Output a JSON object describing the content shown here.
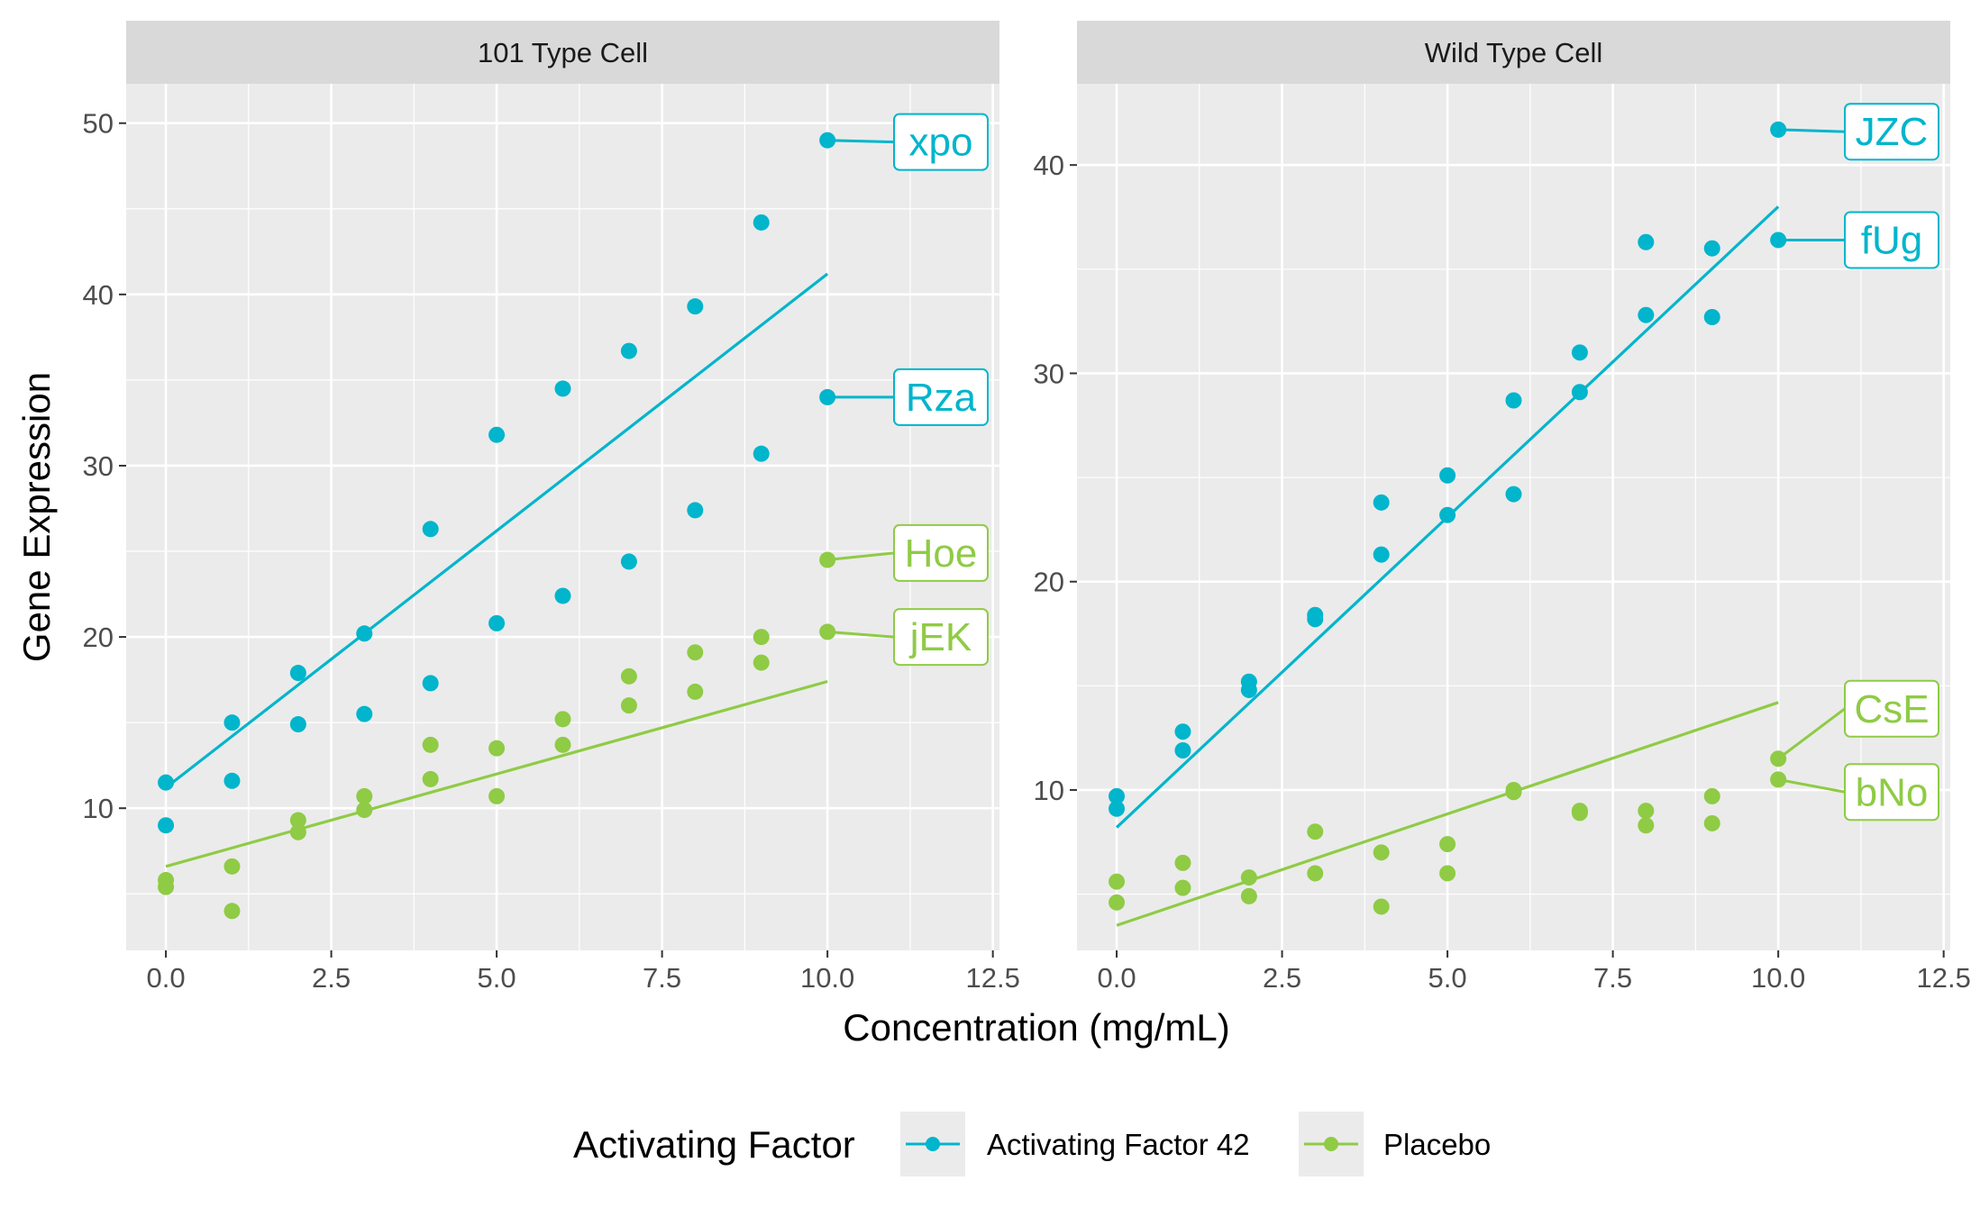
{
  "chart_data": {
    "type": "scatter",
    "xlabel": "Concentration (mg/mL)",
    "ylabel": "Gene Expression",
    "legend": {
      "title": "Activating Factor",
      "placement": "bottom",
      "entries": [
        "Activating Factor 42",
        "Placebo"
      ]
    },
    "colors": {
      "Activating Factor 42": "#00B5CC",
      "Placebo": "#8FCB45"
    },
    "xticks": [
      "0.0",
      "2.5",
      "5.0",
      "7.5",
      "10.0",
      "12.5"
    ],
    "xlim": [
      -0.6,
      12.6
    ],
    "grid": true,
    "panels": [
      {
        "strip": "101 Type Cell",
        "ylim": [
          1.7,
          52.3
        ],
        "yticks": [
          10,
          20,
          30,
          40,
          50
        ],
        "series": [
          {
            "name": "Activating Factor 42",
            "points": [
              [
                0,
                11.5
              ],
              [
                0,
                9.0
              ],
              [
                1,
                15.0
              ],
              [
                1,
                11.6
              ],
              [
                2,
                17.9
              ],
              [
                2,
                14.9
              ],
              [
                3,
                20.2
              ],
              [
                3,
                15.5
              ],
              [
                4,
                26.3
              ],
              [
                4,
                17.3
              ],
              [
                5,
                31.8
              ],
              [
                5,
                20.8
              ],
              [
                6,
                34.5
              ],
              [
                6,
                22.4
              ],
              [
                7,
                36.7
              ],
              [
                7,
                24.4
              ],
              [
                8,
                39.3
              ],
              [
                8,
                27.4
              ],
              [
                9,
                44.2
              ],
              [
                9,
                30.7
              ],
              [
                10,
                49.0
              ],
              [
                10,
                34.0
              ]
            ],
            "fit": [
              [
                0,
                11.2
              ],
              [
                10,
                41.2
              ]
            ]
          },
          {
            "name": "Placebo",
            "points": [
              [
                0,
                5.8
              ],
              [
                0,
                5.4
              ],
              [
                1,
                6.6
              ],
              [
                1,
                4.0
              ],
              [
                2,
                9.3
              ],
              [
                2,
                8.6
              ],
              [
                3,
                10.7
              ],
              [
                3,
                9.9
              ],
              [
                4,
                13.7
              ],
              [
                4,
                11.7
              ],
              [
                5,
                13.5
              ],
              [
                5,
                10.7
              ],
              [
                6,
                15.2
              ],
              [
                6,
                13.7
              ],
              [
                7,
                17.7
              ],
              [
                7,
                16.0
              ],
              [
                8,
                19.1
              ],
              [
                8,
                16.8
              ],
              [
                9,
                20.0
              ],
              [
                9,
                18.5
              ],
              [
                10,
                24.5
              ],
              [
                10,
                20.3
              ]
            ],
            "fit": [
              [
                0,
                6.6
              ],
              [
                10,
                17.4
              ]
            ]
          }
        ],
        "labels": [
          {
            "text": "xpo",
            "series": "Activating Factor 42",
            "x": 10,
            "y": 49.0,
            "label_y": 48.9
          },
          {
            "text": "Rza",
            "series": "Activating Factor 42",
            "x": 10,
            "y": 34.0,
            "label_y": 34.0
          },
          {
            "text": "Hoe",
            "series": "Placebo",
            "x": 10,
            "y": 24.5,
            "label_y": 24.9
          },
          {
            "text": "jEK",
            "series": "Placebo",
            "x": 10,
            "y": 20.3,
            "label_y": 20.0
          }
        ]
      },
      {
        "strip": "Wild Type Cell",
        "ylim": [
          2.3,
          43.9
        ],
        "yticks": [
          10,
          20,
          30,
          40
        ],
        "series": [
          {
            "name": "Activating Factor 42",
            "points": [
              [
                0,
                9.7
              ],
              [
                0,
                9.1
              ],
              [
                1,
                12.8
              ],
              [
                1,
                11.9
              ],
              [
                2,
                15.2
              ],
              [
                2,
                14.8
              ],
              [
                3,
                18.4
              ],
              [
                3,
                18.2
              ],
              [
                4,
                23.8
              ],
              [
                4,
                21.3
              ],
              [
                5,
                25.1
              ],
              [
                5,
                23.2
              ],
              [
                6,
                28.7
              ],
              [
                6,
                24.2
              ],
              [
                7,
                31.0
              ],
              [
                7,
                29.1
              ],
              [
                8,
                36.3
              ],
              [
                8,
                32.8
              ],
              [
                9,
                36.0
              ],
              [
                9,
                32.7
              ],
              [
                10,
                41.7
              ],
              [
                10,
                36.4
              ]
            ],
            "fit": [
              [
                0,
                8.2
              ],
              [
                10,
                38.0
              ]
            ]
          },
          {
            "name": "Placebo",
            "points": [
              [
                0,
                5.6
              ],
              [
                0,
                4.6
              ],
              [
                1,
                6.5
              ],
              [
                1,
                5.3
              ],
              [
                2,
                5.8
              ],
              [
                2,
                4.9
              ],
              [
                3,
                8.0
              ],
              [
                3,
                6.0
              ],
              [
                4,
                7.0
              ],
              [
                4,
                4.4
              ],
              [
                5,
                7.4
              ],
              [
                5,
                6.0
              ],
              [
                6,
                10.0
              ],
              [
                6,
                9.9
              ],
              [
                7,
                9.0
              ],
              [
                7,
                8.9
              ],
              [
                8,
                9.0
              ],
              [
                8,
                8.3
              ],
              [
                9,
                9.7
              ],
              [
                9,
                8.4
              ],
              [
                10,
                11.5
              ],
              [
                10,
                10.5
              ]
            ],
            "fit": [
              [
                0,
                3.5
              ],
              [
                10,
                14.2
              ]
            ]
          }
        ],
        "labels": [
          {
            "text": "JZC",
            "series": "Activating Factor 42",
            "x": 10,
            "y": 41.7,
            "label_y": 41.6
          },
          {
            "text": "fUg",
            "series": "Activating Factor 42",
            "x": 10,
            "y": 36.4,
            "label_y": 36.4
          },
          {
            "text": "CsE",
            "series": "Placebo",
            "x": 10,
            "y": 11.5,
            "label_y": 13.9
          },
          {
            "text": "bNo",
            "series": "Placebo",
            "x": 10,
            "y": 10.5,
            "label_y": 9.9
          }
        ]
      }
    ]
  }
}
